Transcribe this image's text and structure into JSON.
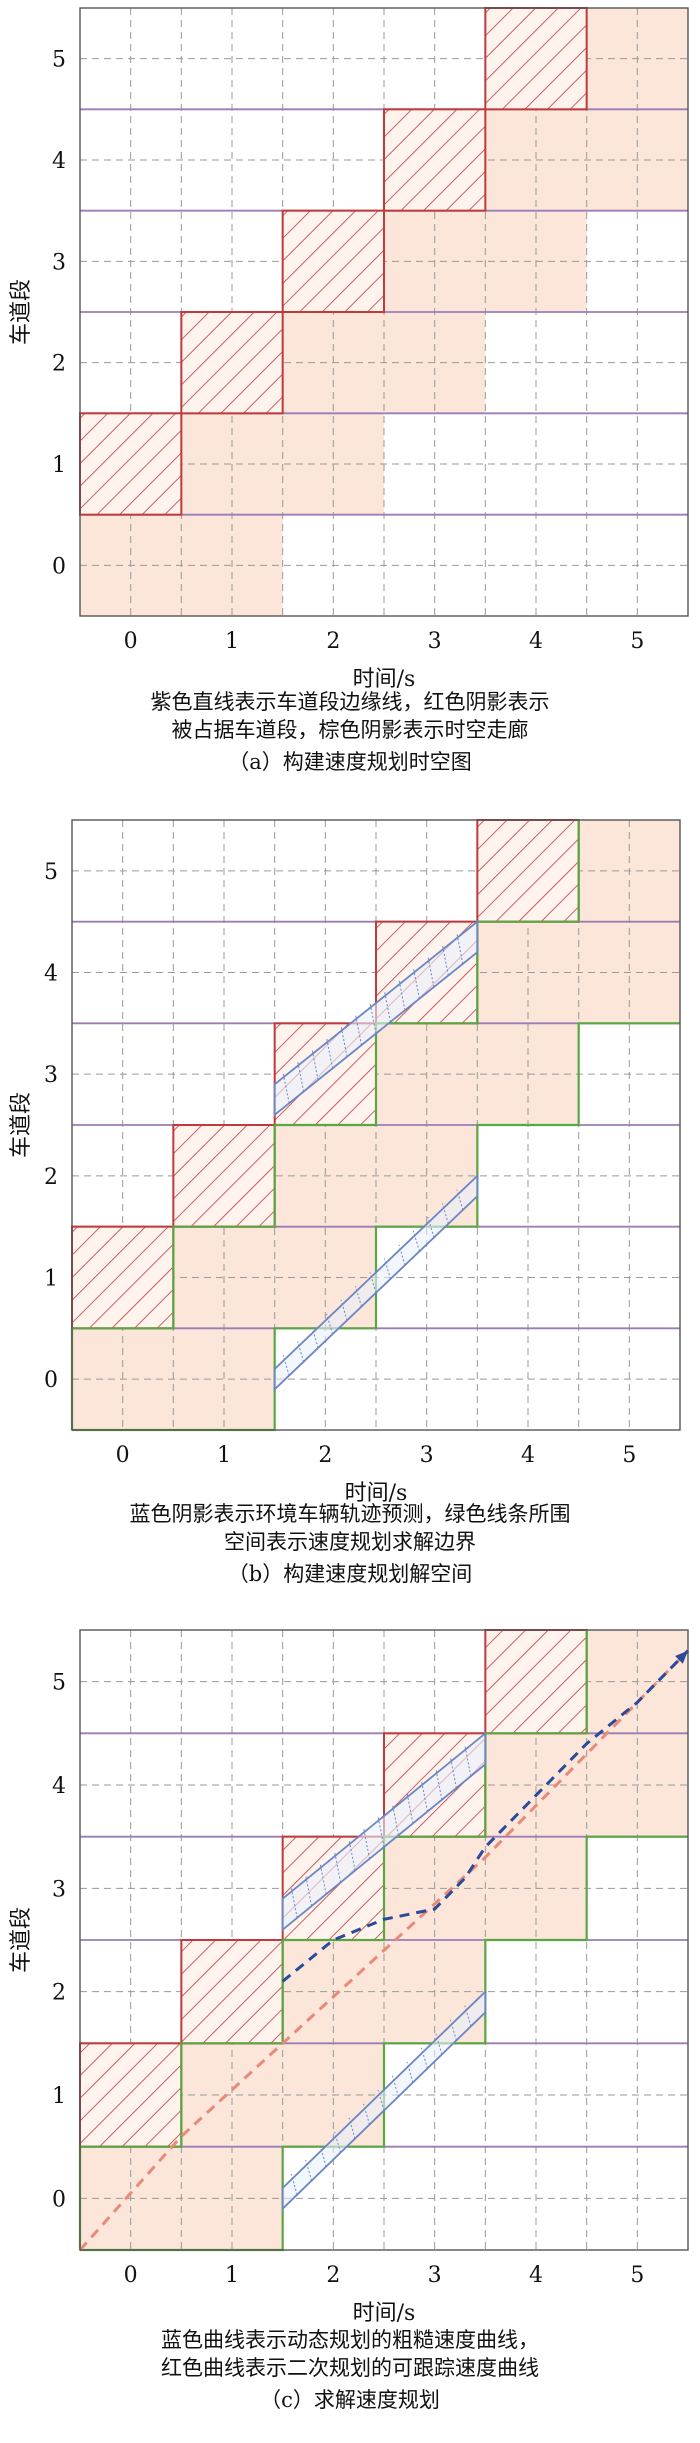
{
  "axis": {
    "xlabel": "时间/s",
    "ylabel": "车道段",
    "x_ticks": [
      "0",
      "1",
      "2",
      "3",
      "4",
      "5"
    ],
    "y_ticks": [
      "0",
      "1",
      "2",
      "3",
      "4",
      "5"
    ]
  },
  "colors": {
    "lane_boundary": "#9b7cb5",
    "occupied_hatch": "#c0393b",
    "corridor_shade": "#fbe6d9",
    "vehicle_prediction": "#6a86c4",
    "solution_boundary": "#5aa642",
    "rough_speed_curve": "#2a4a9a",
    "smooth_speed_curve": "#e88a7a",
    "grid": "#9a9a9a"
  },
  "panels": [
    {
      "id": "a",
      "caption_lines": [
        "紫色直线表示车道段边缘线，红色阴影表示",
        "被占据车道段，棕色阴影表示时空走廊"
      ],
      "subtitle": "（a）构建速度规划时空图"
    },
    {
      "id": "b",
      "caption_lines": [
        "蓝色阴影表示环境车辆轨迹预测，绿色线条所围",
        "空间表示速度规划求解边界"
      ],
      "subtitle": "（b）构建速度规划解空间"
    },
    {
      "id": "c",
      "caption_lines": [
        "蓝色曲线表示动态规划的粗糙速度曲线，",
        "红色曲线表示二次规划的可跟踪速度曲线"
      ],
      "subtitle": "（c）求解速度规划"
    }
  ],
  "diagram_data": {
    "grid": {
      "t_range": [
        -0.5,
        5.5
      ],
      "s_range": [
        -0.5,
        5.5
      ],
      "cell": 0.5
    },
    "occupied_cells": [
      [
        0,
        1
      ],
      [
        1,
        2
      ],
      [
        2,
        3
      ],
      [
        3,
        4
      ],
      [
        4,
        5
      ]
    ],
    "corridor_rows": [
      {
        "lane": 0,
        "t_from": -0.5,
        "t_to": 1.5
      },
      {
        "lane": 1,
        "t_from": 0.5,
        "t_to": 2.5
      },
      {
        "lane": 2,
        "t_from": 1.5,
        "t_to": 3.5
      },
      {
        "lane": 3,
        "t_from": 2.5,
        "t_to": 4.5
      },
      {
        "lane": 4,
        "t_from": 3.5,
        "t_to": 5.5
      },
      {
        "lane": 5,
        "t_from": 4.5,
        "t_to": 5.5
      }
    ],
    "vehicle_predictions": [
      {
        "t": [
          1.5,
          3.5
        ],
        "s_low": [
          -0.1,
          1.8
        ],
        "s_high": [
          0.1,
          2.0
        ]
      },
      {
        "t": [
          1.5,
          3.5
        ],
        "s_low": [
          2.6,
          4.2
        ],
        "s_high": [
          2.9,
          4.5
        ]
      }
    ],
    "rough_speed_curve": [
      [
        1.5,
        2.1
      ],
      [
        2.0,
        2.5
      ],
      [
        2.5,
        2.7
      ],
      [
        3.0,
        2.8
      ],
      [
        3.3,
        3.1
      ],
      [
        3.5,
        3.4
      ],
      [
        4.0,
        3.9
      ],
      [
        4.5,
        4.4
      ],
      [
        5.0,
        4.8
      ],
      [
        5.5,
        5.3
      ]
    ],
    "smooth_speed_curve": [
      [
        -0.5,
        -0.5
      ],
      [
        0.5,
        0.6
      ],
      [
        1.5,
        1.5
      ],
      [
        2.5,
        2.4
      ],
      [
        3.5,
        3.3
      ],
      [
        4.5,
        4.3
      ],
      [
        5.5,
        5.3
      ]
    ]
  }
}
